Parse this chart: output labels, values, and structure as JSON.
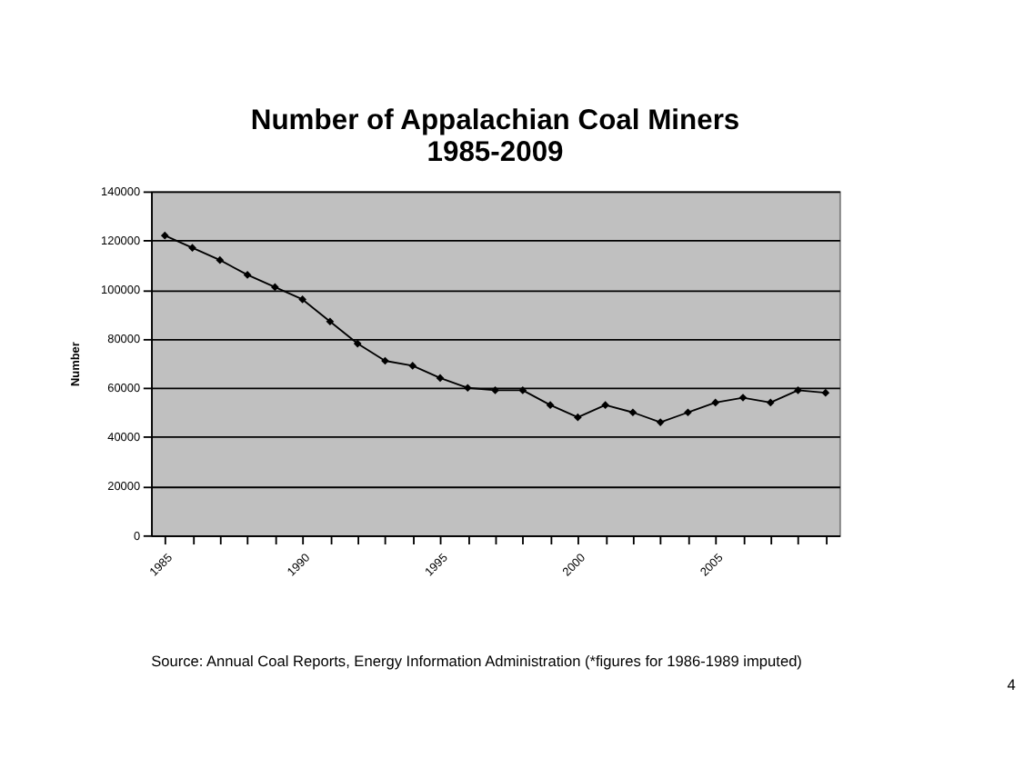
{
  "chart_data": {
    "type": "line",
    "title": [
      "Number of Appalachian Coal Miners",
      "1985-2009"
    ],
    "ylabel": "Number",
    "categories": [
      "1985",
      null,
      null,
      null,
      null,
      "1990",
      null,
      null,
      null,
      null,
      "1995",
      null,
      null,
      null,
      null,
      "2000",
      null,
      null,
      null,
      null,
      "2005",
      null,
      null,
      null,
      null
    ],
    "series": [
      {
        "color": "#000000",
        "values": [
          122000,
          117000,
          112000,
          106000,
          101000,
          96000,
          87000,
          78000,
          71000,
          69000,
          64000,
          60000,
          59000,
          59000,
          53000,
          48000,
          53000,
          50000,
          46000,
          50000,
          54000,
          56000,
          54000,
          59000,
          58000
        ]
      }
    ],
    "ylim": [
      0,
      140000
    ],
    "yticks": [
      0,
      20000,
      40000,
      60000,
      80000,
      100000,
      120000,
      140000
    ],
    "grid": "y",
    "marker": "diamond",
    "line_style": "solid",
    "annotations": [
      "Source: Annual Coal Reports, Energy Information Administration (*figures for 1986-1989 imputed)",
      "4"
    ]
  }
}
